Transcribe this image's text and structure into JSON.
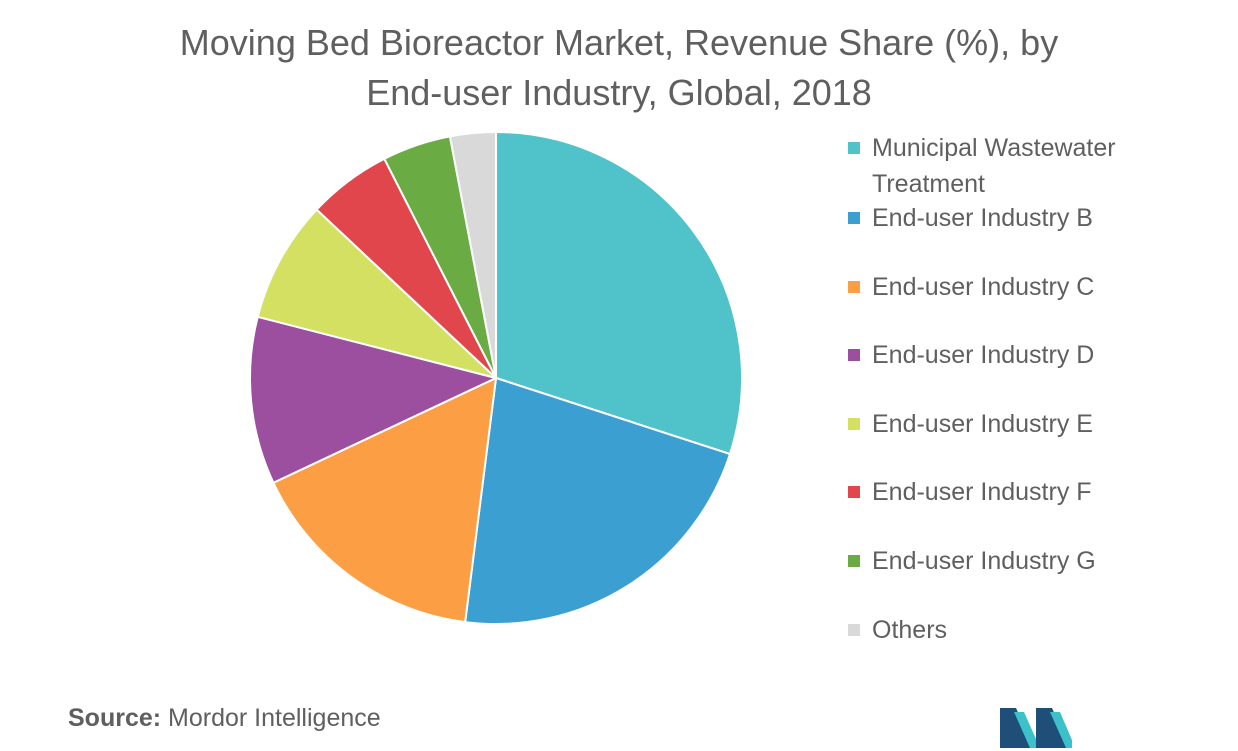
{
  "chart_data": {
    "type": "pie",
    "title_lines": [
      "Moving Bed Bioreactor Market, Revenue Share (%), by",
      "End-user Industry, Global, 2018"
    ],
    "legend_position": "right",
    "slices": [
      {
        "label": "Municipal Wastewater Treatment",
        "label_lines": [
          "Municipal Wastewater",
          "Treatment"
        ],
        "value": 30,
        "color": "#4fc3c9"
      },
      {
        "label": "End-user Industry B",
        "label_lines": [
          "End-user Industry B"
        ],
        "value": 22,
        "color": "#3c9fd1"
      },
      {
        "label": "End-user Industry C",
        "label_lines": [
          "End-user Industry C"
        ],
        "value": 16,
        "color": "#fb9e44"
      },
      {
        "label": "End-user Industry D",
        "label_lines": [
          "End-user Industry D"
        ],
        "value": 11,
        "color": "#9b4f9e"
      },
      {
        "label": "End-user Industry E",
        "label_lines": [
          "End-user Industry E"
        ],
        "value": 8,
        "color": "#d3e062"
      },
      {
        "label": "End-user Industry F",
        "label_lines": [
          "End-user Industry F"
        ],
        "value": 5.5,
        "color": "#e0464c"
      },
      {
        "label": "End-user Industry G",
        "label_lines": [
          "End-user Industry G"
        ],
        "value": 4.5,
        "color": "#6aab44"
      },
      {
        "label": "Others",
        "label_lines": [
          "Others"
        ],
        "value": 3,
        "color": "#d9d9d9"
      }
    ]
  },
  "source": {
    "key": "Source:",
    "value": "Mordor Intelligence"
  },
  "logo": {
    "name": "mordor-intelligence-logo",
    "colors": [
      "#1f4e79",
      "#3cc0c9"
    ]
  }
}
